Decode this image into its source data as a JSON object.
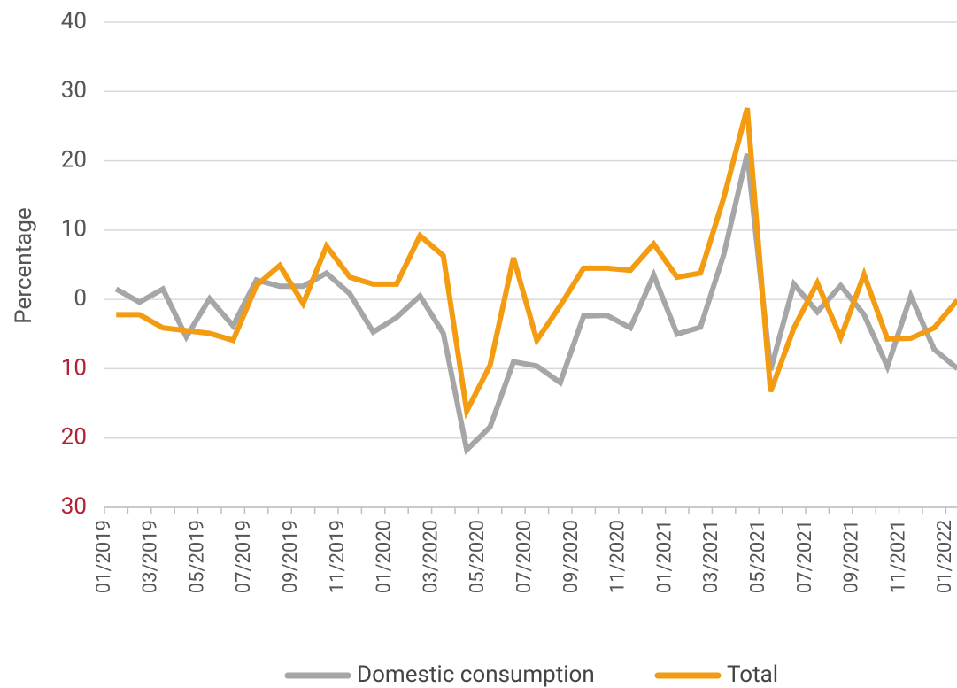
{
  "chart_data": {
    "type": "line",
    "y_label": "Percentage",
    "categories": [
      "01/2019",
      null,
      "03/2019",
      null,
      "05/2019",
      null,
      "07/2019",
      null,
      "09/2019",
      null,
      "11/2019",
      null,
      "01/2020",
      null,
      "03/2020",
      null,
      "05/2020",
      null,
      "07/2020",
      null,
      "09/2020",
      null,
      "11/2020",
      null,
      "01/2021",
      null,
      "03/2021",
      null,
      "05/2021",
      null,
      "07/2021",
      null,
      "09/2021",
      null,
      "11/2021",
      null,
      "01/2022"
    ],
    "series": [
      {
        "name": "Domestic consumption",
        "color": "#a6a6a6",
        "values": [
          1.5,
          -0.4,
          1.5,
          -5.4,
          0.1,
          -3.8,
          2.8,
          1.9,
          1.9,
          3.8,
          0.8,
          -4.7,
          -2.6,
          0.5,
          -4.9,
          -21.7,
          -18.4,
          -9,
          -9.6,
          -12,
          -2.4,
          -2.3,
          -4.1,
          3.5,
          -5,
          -4,
          6.5,
          21,
          -10.2,
          2.2,
          -1.8,
          2,
          -2.2,
          -9.7,
          0.5,
          -7.2,
          -10
        ]
      },
      {
        "name": "Total",
        "color": "#f39c12",
        "values": [
          -2.2,
          -2.2,
          -4.1,
          -4.5,
          -4.9,
          -5.9,
          2,
          4.9,
          -0.6,
          7.7,
          3.2,
          2.2,
          2.2,
          9.2,
          6.3,
          -16.1,
          -9.5,
          6,
          -5.9,
          -0.9,
          4.5,
          4.5,
          4.2,
          8,
          3.2,
          3.8,
          14.7,
          27.6,
          -13.3,
          -4.1,
          2.4,
          -5.5,
          3.6,
          -5.7,
          -5.6,
          -4.1,
          -0.1
        ]
      }
    ],
    "ylim": [
      -30,
      40
    ],
    "yticks": [
      {
        "value": -30,
        "label": "30"
      },
      {
        "value": -20,
        "label": "20"
      },
      {
        "value": -10,
        "label": "10"
      },
      0,
      10,
      20,
      30,
      40
    ],
    "tick_label_color": "#555555",
    "negative_tick_label_color": "#b22234",
    "grid": true,
    "legend": "bottom"
  }
}
